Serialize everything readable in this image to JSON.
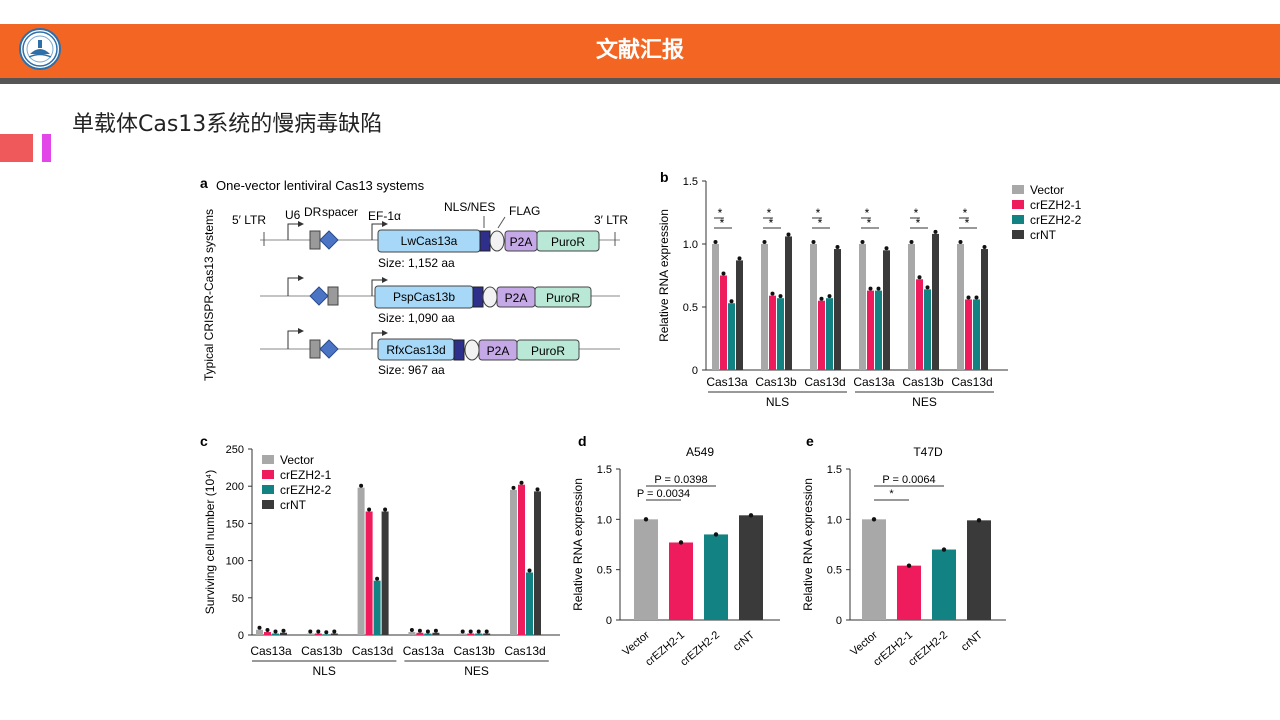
{
  "header": {
    "title": "文献汇报"
  },
  "slide": {
    "subtitle": "单载体Cas13系统的慢病毒缺陷"
  },
  "colors": {
    "header": "#f26522",
    "vector": "#a8a8a8",
    "crEZH2_1": "#ee1c5c",
    "crEZH2_2": "#128282",
    "crNT": "#3a3a3a"
  },
  "figure": {
    "panel_a": {
      "letter": "a",
      "title": "One-vector lentiviral Cas13 systems",
      "side_label": "Typical CRISPR-Cas13 systems",
      "labels": {
        "ltr5": "5′ LTR",
        "u6": "U6",
        "dr": "DR",
        "spacer": "spacer",
        "ef": "EF-1α",
        "nls_nes": "NLS/NES",
        "flag": "FLAG",
        "ltr3": "3′ LTR"
      },
      "constructs": [
        {
          "name": "LwCas13a",
          "size": "Size: 1,152 aa",
          "p2a": "P2A",
          "puro": "PuroR"
        },
        {
          "name": "PspCas13b",
          "size": "Size: 1,090 aa",
          "p2a": "P2A",
          "puro": "PuroR"
        },
        {
          "name": "RfxCas13d",
          "size": "Size: 967 aa",
          "p2a": "P2A",
          "puro": "PuroR"
        }
      ]
    }
  },
  "chart_data": [
    {
      "panel": "b",
      "type": "bar",
      "ylabel": "Relative RNA expression",
      "ylim": [
        0,
        1.5
      ],
      "yticks": [
        0,
        0.5,
        1.0,
        1.5
      ],
      "categories": [
        "Cas13a",
        "Cas13b",
        "Cas13d",
        "Cas13a",
        "Cas13b",
        "Cas13d"
      ],
      "groups": [
        {
          "label": "NLS"
        },
        {
          "label": "NES"
        }
      ],
      "legend": "right",
      "series": [
        {
          "name": "Vector",
          "values": [
            1.0,
            1.0,
            1.0,
            1.0,
            1.0,
            1.0
          ]
        },
        {
          "name": "crEZH2-1",
          "values": [
            0.75,
            0.59,
            0.55,
            0.63,
            0.72,
            0.56
          ]
        },
        {
          "name": "crEZH2-2",
          "values": [
            0.53,
            0.57,
            0.57,
            0.63,
            0.64,
            0.56
          ]
        },
        {
          "name": "crNT",
          "values": [
            0.87,
            1.06,
            0.96,
            0.95,
            1.08,
            0.96
          ]
        }
      ],
      "significance": [
        "*",
        "*",
        "*",
        "*",
        "*",
        "*",
        "*",
        "*",
        "*",
        "*",
        "*",
        "*"
      ]
    },
    {
      "panel": "c",
      "type": "bar",
      "ylabel": "Surviving cell number (10⁴)",
      "ylim": [
        0,
        250
      ],
      "yticks": [
        0,
        50,
        100,
        150,
        200,
        250
      ],
      "categories": [
        "Cas13a",
        "Cas13b",
        "Cas13d",
        "Cas13a",
        "Cas13b",
        "Cas13d"
      ],
      "groups": [
        {
          "label": "NLS"
        },
        {
          "label": "NES"
        }
      ],
      "legend": "top-left",
      "series": [
        {
          "name": "Vector",
          "values": [
            7,
            2,
            198,
            4,
            2,
            195
          ]
        },
        {
          "name": "crEZH2-1",
          "values": [
            4,
            2,
            166,
            3,
            2,
            202
          ]
        },
        {
          "name": "crEZH2-2",
          "values": [
            2,
            1,
            73,
            2,
            2,
            84
          ]
        },
        {
          "name": "crNT",
          "values": [
            3,
            2,
            166,
            3,
            2,
            193
          ]
        }
      ]
    },
    {
      "panel": "d",
      "type": "bar",
      "title": "A549",
      "ylabel": "Relative RNA expression",
      "ylim": [
        0,
        1.5
      ],
      "yticks": [
        0,
        0.5,
        1.0,
        1.5
      ],
      "categories": [
        "Vector",
        "crEZH2-1",
        "crEZH2-2",
        "crNT"
      ],
      "values": [
        1.0,
        0.77,
        0.85,
        1.04
      ],
      "annotations": [
        "P = 0.0398",
        "P = 0.0034"
      ]
    },
    {
      "panel": "e",
      "type": "bar",
      "title": "T47D",
      "ylabel": "Relative RNA expression",
      "ylim": [
        0,
        1.5
      ],
      "yticks": [
        0,
        0.5,
        1.0,
        1.5
      ],
      "categories": [
        "Vector",
        "crEZH2-1",
        "crEZH2-2",
        "crNT"
      ],
      "values": [
        1.0,
        0.54,
        0.7,
        0.99
      ],
      "annotations": [
        "P = 0.0064",
        "*"
      ]
    }
  ]
}
